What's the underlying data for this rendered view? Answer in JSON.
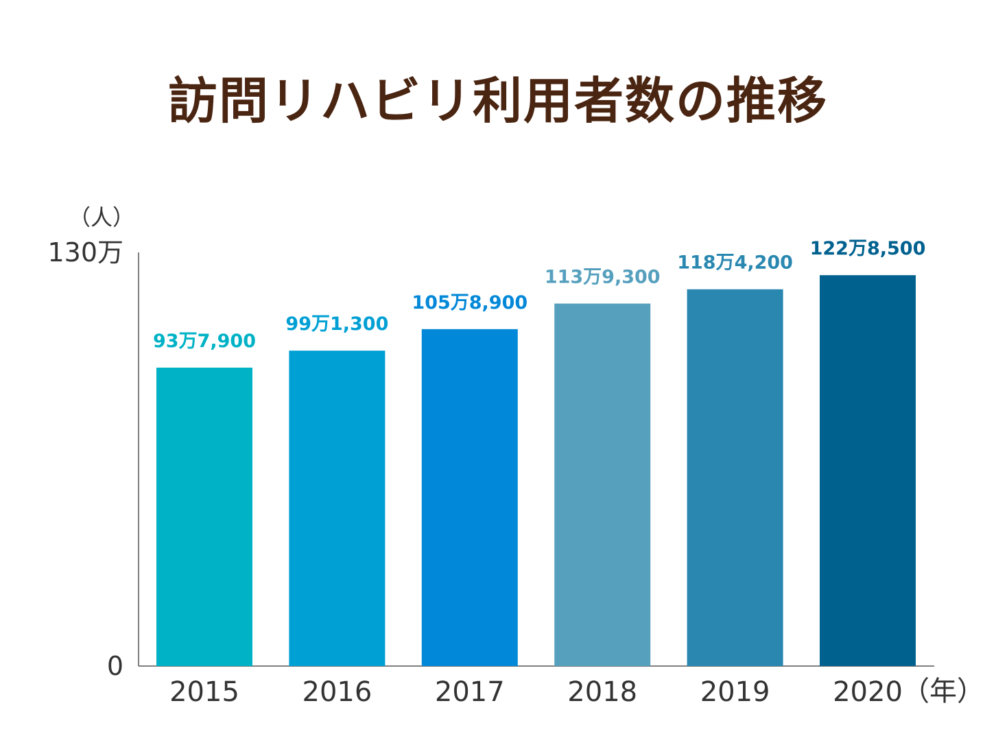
{
  "title": "訪問リハビリ利用者数の推移",
  "chart_data": {
    "type": "bar",
    "title": "訪問リハビリ利用者数の推移",
    "y_unit_label": "（人）",
    "x_unit_label": "（年）",
    "ylim": [
      0,
      1300000
    ],
    "y_tick_labels": [
      {
        "value": 0,
        "label": "0"
      },
      {
        "value": 1300000,
        "label": "130万"
      }
    ],
    "grid": false,
    "categories": [
      "2015",
      "2016",
      "2017",
      "2018",
      "2019",
      "2020"
    ],
    "values": [
      937900,
      991300,
      1058900,
      1139300,
      1184200,
      1228500
    ],
    "value_labels": [
      "93万7,900",
      "99万1,300",
      "105万8,900",
      "113万9,300",
      "118万4,200",
      "122万8,500"
    ],
    "colors": [
      "#00b2c6",
      "#00a0d4",
      "#0288d8",
      "#56a0be",
      "#2a88b0",
      "#00618f"
    ]
  }
}
